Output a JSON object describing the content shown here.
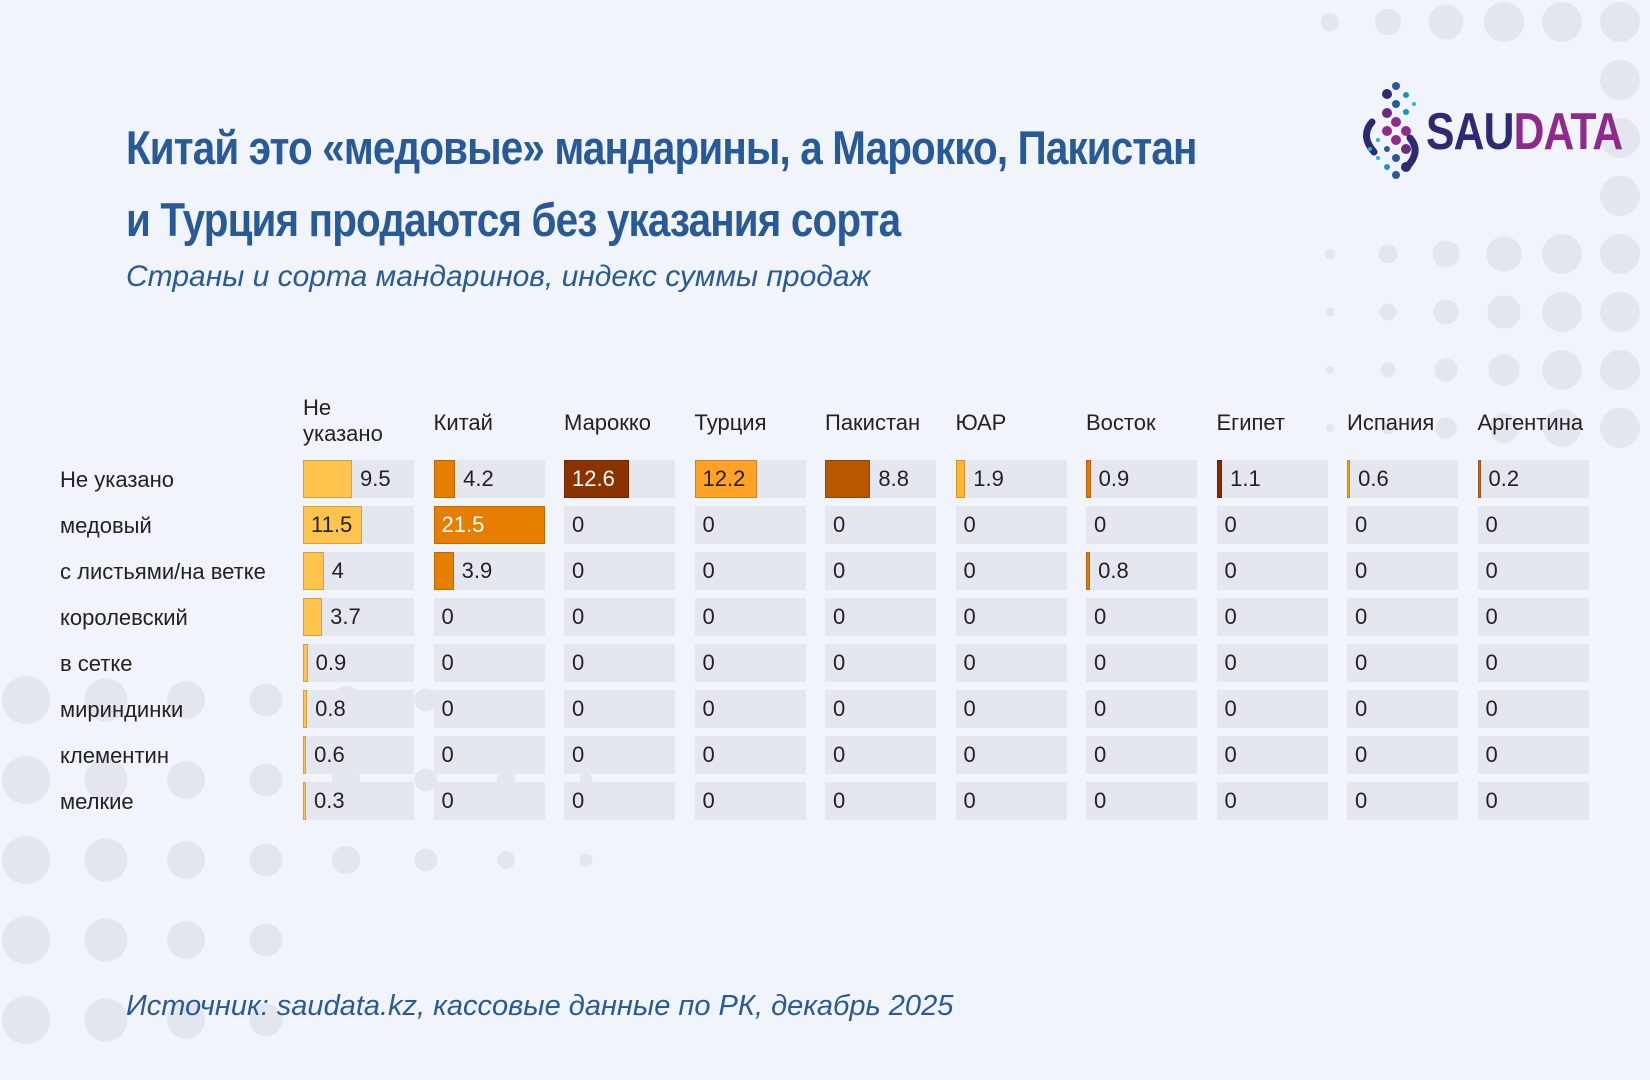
{
  "title_line1": "Китай это «медовые» мандарины, а Марокко, Пакистан",
  "title_line2": "и Турция продаются без указания сорта",
  "subtitle": "Страны и сорта мандаринов, индекс суммы продаж",
  "source": "Источник: saudata.kz, кассовые данные по РК, декабрь 2025",
  "logo": {
    "part1": "SAU",
    "part2": "DATA",
    "colors": [
      "#2C2A70",
      "#8E2A8C"
    ]
  },
  "chart_data": {
    "type": "heatmap",
    "title": "Китай это «медовые» мандарины, а Марокко, Пакистан и Турция продаются без указания сорта",
    "subtitle": "Страны и сорта мандаринов, индекс суммы продаж",
    "columns": [
      "Не указано",
      "Китай",
      "Марокко",
      "Турция",
      "Пакистан",
      "ЮАР",
      "Восток",
      "Египет",
      "Испания",
      "Аргентина"
    ],
    "column_colors": [
      "#FFC44E",
      "#E67E00",
      "#8B3300",
      "#FFA226",
      "#B95600",
      "#FFB733",
      "#DF7A0C",
      "#8B2600",
      "#F7A21E",
      "#C06A22"
    ],
    "rows": [
      "Не указано",
      "медовый",
      "с листьями/на ветке",
      "королевский",
      "в сетке",
      "мириндинки",
      "клементин",
      "мелкие"
    ],
    "values": [
      [
        9.5,
        4.2,
        12.6,
        12.2,
        8.8,
        1.9,
        0.9,
        1.1,
        0.6,
        0.2
      ],
      [
        11.5,
        21.5,
        0,
        0,
        0,
        0,
        0,
        0,
        0,
        0
      ],
      [
        4,
        3.9,
        0,
        0,
        0,
        0,
        0.8,
        0,
        0,
        0
      ],
      [
        3.7,
        0,
        0,
        0,
        0,
        0,
        0,
        0,
        0,
        0
      ],
      [
        0.9,
        0,
        0,
        0,
        0,
        0,
        0,
        0,
        0,
        0
      ],
      [
        0.8,
        0,
        0,
        0,
        0,
        0,
        0,
        0,
        0,
        0
      ],
      [
        0.6,
        0,
        0,
        0,
        0,
        0,
        0,
        0,
        0,
        0
      ],
      [
        0.3,
        0,
        0,
        0,
        0,
        0,
        0,
        0,
        0,
        0
      ]
    ],
    "value_max": 21.5
  }
}
